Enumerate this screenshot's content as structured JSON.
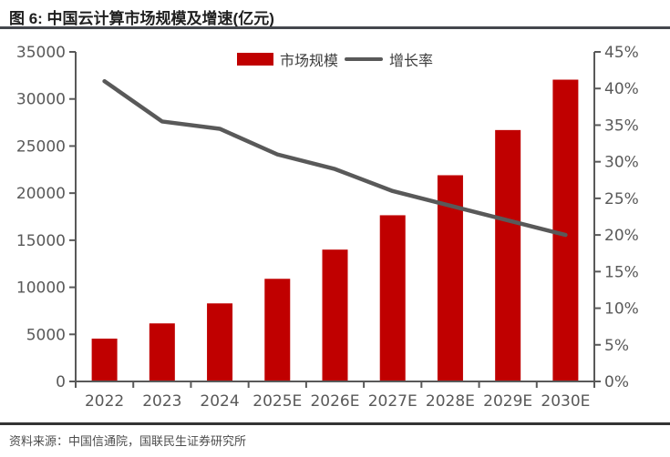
{
  "header": {
    "title": "图 6: 中国云计算市场规模及增速(亿元)"
  },
  "legend": {
    "bar_label": "市场规模",
    "line_label": "增长率"
  },
  "footer": {
    "source": "资料来源：中国信通院，国联民生证券研究所"
  },
  "colors": {
    "bar": "#c00000",
    "line": "#595959",
    "axis": "#595959",
    "title_rule": "#44474d",
    "footer_rule": "#333333"
  },
  "chart_data": {
    "type": "bar",
    "subtype": "bar+line combo, dual axis",
    "title": "中国云计算市场规模及增速(亿元)",
    "categories": [
      "2022",
      "2023",
      "2024",
      "2025E",
      "2026E",
      "2027E",
      "2028E",
      "2029E",
      "2030E"
    ],
    "series": [
      {
        "name": "市场规模",
        "type": "bar",
        "axis": "left",
        "color": "#c00000",
        "values": [
          4550,
          6165,
          8290,
          10900,
          14000,
          17650,
          21900,
          26700,
          32050
        ]
      },
      {
        "name": "增长率",
        "type": "line",
        "axis": "right",
        "color": "#595959",
        "unit": "%",
        "values": [
          41,
          35.5,
          34.5,
          31,
          29,
          26,
          24,
          22,
          20
        ]
      }
    ],
    "left_axis": {
      "min": 0,
      "max": 35000,
      "step": 5000,
      "tick_labels": [
        "0",
        "5000",
        "10000",
        "15000",
        "20000",
        "25000",
        "30000",
        "35000"
      ]
    },
    "right_axis": {
      "min": 0,
      "max": 45,
      "step": 5,
      "format": "percent",
      "tick_labels": [
        "0%",
        "5%",
        "10%",
        "15%",
        "20%",
        "25%",
        "30%",
        "35%",
        "40%",
        "45%"
      ]
    },
    "grid": false,
    "legend_position": "top-center"
  }
}
